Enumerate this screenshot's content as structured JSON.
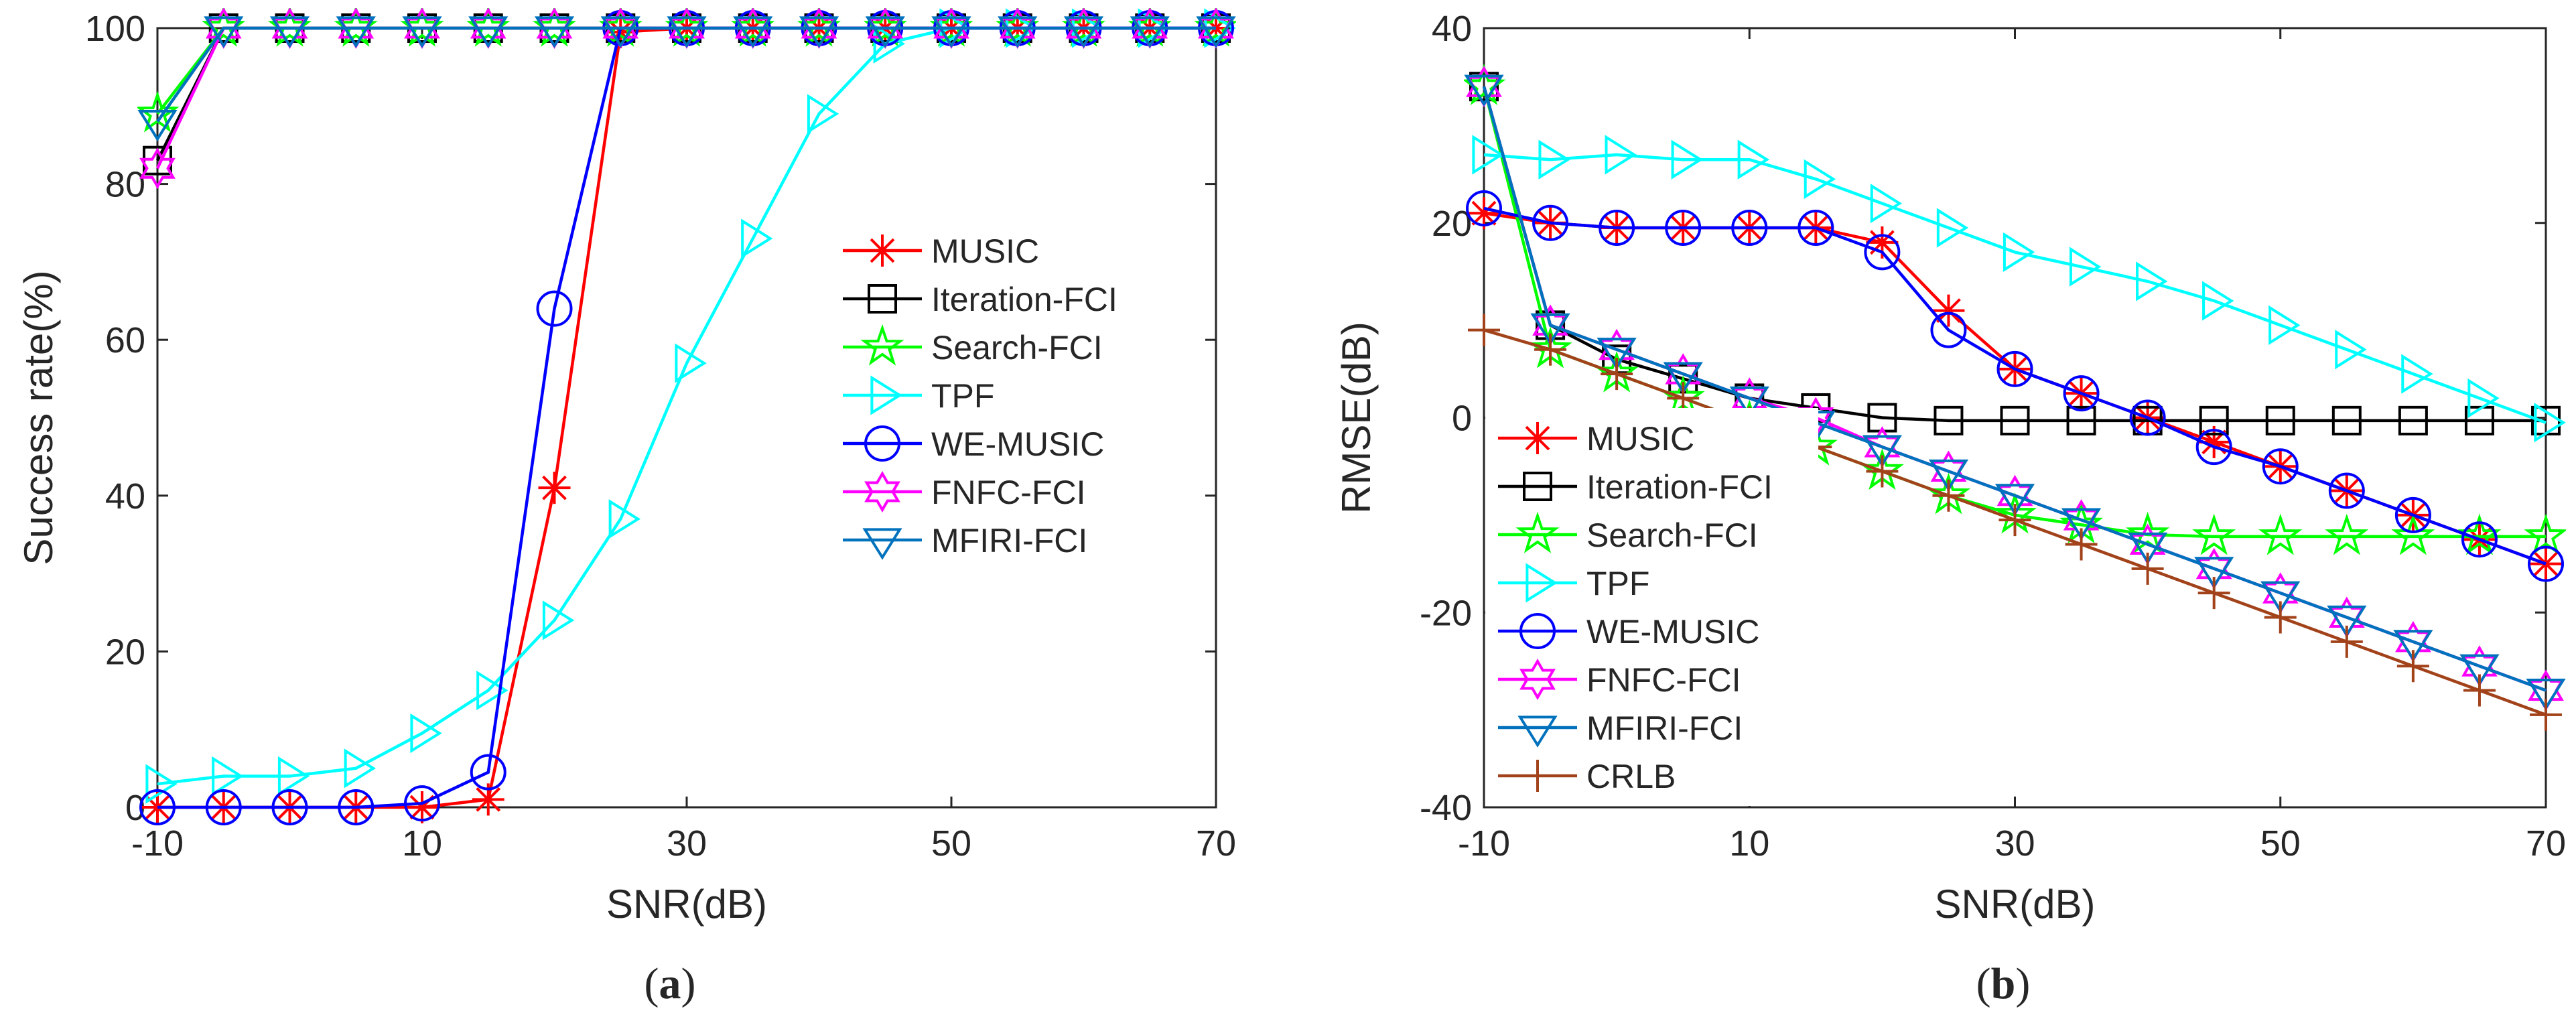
{
  "chart_data": [
    {
      "type": "line",
      "panel": "a",
      "caption": {
        "open": "(",
        "letter": "a",
        "close": ")"
      },
      "xlabel": "SNR(dB)",
      "ylabel": "Success rate(%)",
      "xlim": [
        -10,
        70
      ],
      "ylim": [
        0,
        100
      ],
      "xticks": [
        -10,
        10,
        30,
        50,
        70
      ],
      "yticks": [
        0,
        20,
        40,
        60,
        80,
        100
      ],
      "xtick_labels": [
        "-10",
        "10",
        "30",
        "50",
        "70"
      ],
      "ytick_labels": [
        "0",
        "20",
        "40",
        "60",
        "80",
        "100"
      ],
      "legend_position": "center-right",
      "x": [
        -10,
        -5,
        0,
        5,
        10,
        15,
        20,
        25,
        30,
        35,
        40,
        45,
        50,
        55,
        60,
        65,
        70
      ],
      "series": [
        {
          "name": "MUSIC",
          "color": "#ff0000",
          "marker": "asterisk",
          "values": [
            0,
            0,
            0,
            0,
            0,
            1,
            41,
            99.5,
            100,
            100,
            100,
            100,
            100,
            100,
            100,
            100,
            100
          ]
        },
        {
          "name": "Iteration-FCI",
          "color": "#000000",
          "marker": "square",
          "values": [
            83,
            100,
            100,
            100,
            100,
            100,
            100,
            100,
            100,
            100,
            100,
            100,
            100,
            100,
            100,
            100,
            100
          ]
        },
        {
          "name": "Search-FCI",
          "color": "#00ff00",
          "marker": "pentagram",
          "values": [
            89,
            100,
            100,
            100,
            100,
            100,
            100,
            100,
            100,
            100,
            100,
            100,
            100,
            100,
            100,
            100,
            100
          ]
        },
        {
          "name": "TPF",
          "color": "#00ffff",
          "marker": "triangle-right",
          "values": [
            3,
            4,
            4,
            5,
            9.5,
            15,
            24,
            37,
            57,
            73,
            89,
            98,
            100,
            100,
            100,
            100,
            100
          ]
        },
        {
          "name": "WE-MUSIC",
          "color": "#0000ff",
          "marker": "circle",
          "values": [
            0,
            0,
            0,
            0,
            0.5,
            4.5,
            64,
            100,
            100,
            100,
            100,
            100,
            100,
            100,
            100,
            100,
            100
          ]
        },
        {
          "name": "FNFC-FCI",
          "color": "#ff00ff",
          "marker": "hexagram",
          "values": [
            82,
            100,
            100,
            100,
            100,
            100,
            100,
            100,
            100,
            100,
            100,
            100,
            100,
            100,
            100,
            100,
            100
          ]
        },
        {
          "name": "MFIRI-FCI",
          "color": "#0072bd",
          "marker": "triangle-down",
          "values": [
            88,
            100,
            100,
            100,
            100,
            100,
            100,
            100,
            100,
            100,
            100,
            100,
            100,
            100,
            100,
            100,
            100
          ]
        }
      ]
    },
    {
      "type": "line",
      "panel": "b",
      "caption": {
        "open": "(",
        "letter": "b",
        "close": ")"
      },
      "xlabel": "SNR(dB)",
      "ylabel": "RMSE(dB)",
      "xlim": [
        -10,
        70
      ],
      "ylim": [
        -40,
        40
      ],
      "xticks": [
        -10,
        10,
        30,
        50,
        70
      ],
      "yticks": [
        -40,
        -20,
        0,
        20,
        40
      ],
      "xtick_labels": [
        "-10",
        "10",
        "30",
        "50",
        "70"
      ],
      "ytick_labels": [
        "-40",
        "-20",
        "0",
        "20",
        "40"
      ],
      "legend_position": "bottom-left",
      "x": [
        -10,
        -5,
        0,
        5,
        10,
        15,
        20,
        25,
        30,
        35,
        40,
        45,
        50,
        55,
        60,
        65,
        70
      ],
      "series": [
        {
          "name": "MUSIC",
          "color": "#ff0000",
          "marker": "asterisk",
          "values": [
            21,
            20,
            19.5,
            19.5,
            19.5,
            19.5,
            18,
            11,
            5,
            2.5,
            0,
            -2.5,
            -5,
            -7.5,
            -10,
            -12.5,
            -15
          ]
        },
        {
          "name": "Iteration-FCI",
          "color": "#000000",
          "marker": "square",
          "values": [
            34,
            9.5,
            6,
            4,
            2,
            1,
            0,
            -0.3,
            -0.3,
            -0.3,
            -0.3,
            -0.3,
            -0.3,
            -0.3,
            -0.3,
            -0.3,
            -0.3
          ]
        },
        {
          "name": "Search-FCI",
          "color": "#00ff00",
          "marker": "pentagram",
          "values": [
            34,
            7,
            4.5,
            2,
            -0.5,
            -3,
            -5.5,
            -8,
            -10,
            -11,
            -12,
            -12.2,
            -12.2,
            -12.2,
            -12.2,
            -12.2,
            -12.2
          ]
        },
        {
          "name": "TPF",
          "color": "#00ffff",
          "marker": "triangle-right",
          "values": [
            27,
            26.5,
            27,
            26.5,
            26.5,
            24.5,
            22,
            19.5,
            17,
            15.5,
            14,
            12,
            9.5,
            7,
            4.5,
            2,
            -0.5
          ]
        },
        {
          "name": "WE-MUSIC",
          "color": "#0000ff",
          "marker": "circle",
          "values": [
            21.5,
            20,
            19.5,
            19.5,
            19.5,
            19.5,
            17,
            9,
            5,
            2.5,
            0,
            -3,
            -5,
            -7.5,
            -10,
            -12.5,
            -15
          ]
        },
        {
          "name": "FNFC-FCI",
          "color": "#ff00ff",
          "marker": "hexagram",
          "values": [
            34,
            9.5,
            7,
            4.5,
            2,
            0,
            -3,
            -5.5,
            -8,
            -10.5,
            -13,
            -15.5,
            -18,
            -20.5,
            -23,
            -25.5,
            -28
          ]
        },
        {
          "name": "MFIRI-FCI",
          "color": "#0072bd",
          "marker": "triangle-down",
          "values": [
            34,
            9.5,
            7,
            4.5,
            2,
            -0.5,
            -3,
            -5.5,
            -8,
            -10.5,
            -13,
            -15.5,
            -18,
            -20.5,
            -23,
            -25.5,
            -28
          ]
        },
        {
          "name": "CRLB",
          "color": "#a2421a",
          "marker": "plus",
          "values": [
            9,
            7,
            4.5,
            2,
            -0.5,
            -3,
            -5.5,
            -8,
            -10.5,
            -13,
            -15.5,
            -18,
            -20.5,
            -23,
            -25.5,
            -28,
            -30.5
          ]
        }
      ]
    }
  ]
}
